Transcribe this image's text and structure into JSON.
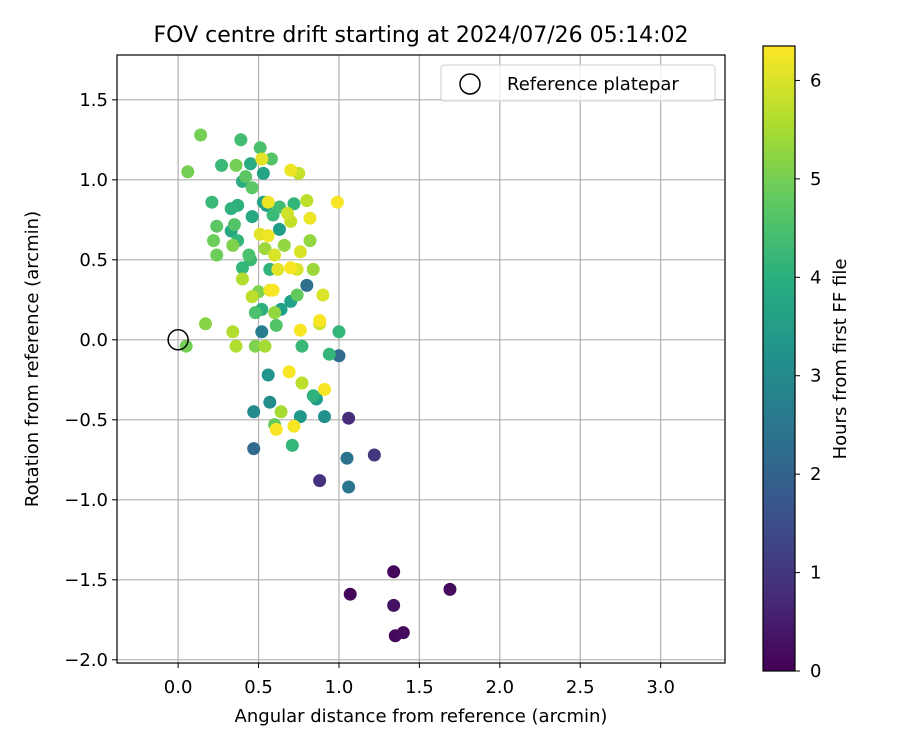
{
  "chart_data": {
    "type": "scatter",
    "title": "FOV centre drift starting at 2024/07/26 05:14:02",
    "xlabel": "Angular distance from reference (arcmin)",
    "ylabel": "Rotation from reference (arcmin)",
    "xlim": [
      -0.38,
      3.4
    ],
    "ylim": [
      -2.02,
      1.78
    ],
    "xticks": [
      0.0,
      0.5,
      1.0,
      1.5,
      2.0,
      2.5,
      3.0
    ],
    "xtick_labels": [
      "0.0",
      "0.5",
      "1.0",
      "1.5",
      "2.0",
      "2.5",
      "3.0"
    ],
    "yticks": [
      1.5,
      1.0,
      0.5,
      0.0,
      -0.5,
      -1.0,
      -1.5,
      -2.0
    ],
    "ytick_labels": [
      "1.5",
      "1.0",
      "0.5",
      "0.0",
      "−0.5",
      "−1.0",
      "−1.5",
      "−2.0"
    ],
    "grid": true,
    "legend": {
      "position": "top-right",
      "entries": [
        {
          "label": "Reference platepar",
          "marker": "open-circle"
        }
      ]
    },
    "reference_point": {
      "x": 0.0,
      "y": 0.0
    },
    "colorbar": {
      "label": "Hours from first FF file",
      "min": 0,
      "max": 6.35,
      "ticks": [
        0,
        1,
        2,
        3,
        4,
        5,
        6
      ],
      "tick_labels": [
        "0",
        "1",
        "2",
        "3",
        "4",
        "5",
        "6"
      ],
      "colormap": "viridis"
    },
    "points": [
      {
        "x": 1.07,
        "y": -1.59,
        "c": 0.1
      },
      {
        "x": 1.34,
        "y": -1.45,
        "c": 0.1
      },
      {
        "x": 1.34,
        "y": -1.66,
        "c": 0.3
      },
      {
        "x": 1.35,
        "y": -1.85,
        "c": 0.1
      },
      {
        "x": 1.4,
        "y": -1.83,
        "c": 0.2
      },
      {
        "x": 1.69,
        "y": -1.56,
        "c": 0.2
      },
      {
        "x": 1.06,
        "y": -0.49,
        "c": 0.8
      },
      {
        "x": 1.22,
        "y": -0.72,
        "c": 1.0
      },
      {
        "x": 0.88,
        "y": -0.88,
        "c": 0.9
      },
      {
        "x": 1.06,
        "y": -0.92,
        "c": 2.5
      },
      {
        "x": 1.05,
        "y": -0.74,
        "c": 2.4
      },
      {
        "x": 1.0,
        "y": -0.1,
        "c": 2.2
      },
      {
        "x": 0.47,
        "y": -0.68,
        "c": 2.2
      },
      {
        "x": 0.8,
        "y": 0.34,
        "c": 2.3
      },
      {
        "x": 0.52,
        "y": 0.05,
        "c": 2.7
      },
      {
        "x": 0.47,
        "y": -0.45,
        "c": 3.0
      },
      {
        "x": 0.57,
        "y": -0.39,
        "c": 3.1
      },
      {
        "x": 0.56,
        "y": -0.22,
        "c": 3.3
      },
      {
        "x": 0.91,
        "y": -0.48,
        "c": 3.2
      },
      {
        "x": 0.76,
        "y": -0.48,
        "c": 3.4
      },
      {
        "x": 0.86,
        "y": -0.37,
        "c": 3.5
      },
      {
        "x": 0.63,
        "y": 0.69,
        "c": 3.5
      },
      {
        "x": 0.64,
        "y": 0.19,
        "c": 3.6
      },
      {
        "x": 0.55,
        "y": 0.84,
        "c": 3.5
      },
      {
        "x": 0.7,
        "y": 0.24,
        "c": 3.6
      },
      {
        "x": 0.53,
        "y": 0.86,
        "c": 3.7
      },
      {
        "x": 0.53,
        "y": 1.04,
        "c": 3.7
      },
      {
        "x": 0.46,
        "y": 0.77,
        "c": 3.8
      },
      {
        "x": 0.33,
        "y": 0.68,
        "c": 3.8
      },
      {
        "x": 0.4,
        "y": 0.99,
        "c": 3.9
      },
      {
        "x": 0.45,
        "y": 1.1,
        "c": 3.9
      },
      {
        "x": 0.37,
        "y": 0.84,
        "c": 4.0
      },
      {
        "x": 0.52,
        "y": 0.19,
        "c": 4.0
      },
      {
        "x": 0.57,
        "y": 0.44,
        "c": 4.1
      },
      {
        "x": 0.33,
        "y": 0.82,
        "c": 4.1
      },
      {
        "x": 0.37,
        "y": 0.62,
        "c": 4.2
      },
      {
        "x": 0.72,
        "y": 0.85,
        "c": 4.2
      },
      {
        "x": 0.45,
        "y": 0.5,
        "c": 4.3
      },
      {
        "x": 0.59,
        "y": 0.78,
        "c": 4.3
      },
      {
        "x": 0.4,
        "y": 0.45,
        "c": 4.2
      },
      {
        "x": 0.27,
        "y": 1.09,
        "c": 4.3
      },
      {
        "x": 0.21,
        "y": 0.86,
        "c": 4.3
      },
      {
        "x": 0.84,
        "y": -0.35,
        "c": 4.1
      },
      {
        "x": 0.71,
        "y": -0.66,
        "c": 4.2
      },
      {
        "x": 1.0,
        "y": 0.05,
        "c": 4.2
      },
      {
        "x": 0.94,
        "y": -0.09,
        "c": 4.2
      },
      {
        "x": 0.77,
        "y": -0.04,
        "c": 4.3
      },
      {
        "x": 0.63,
        "y": 0.83,
        "c": 4.4
      },
      {
        "x": 0.39,
        "y": 1.25,
        "c": 4.4
      },
      {
        "x": 0.48,
        "y": 0.17,
        "c": 4.5
      },
      {
        "x": 0.51,
        "y": 1.2,
        "c": 4.5
      },
      {
        "x": 0.58,
        "y": 1.13,
        "c": 4.6
      },
      {
        "x": 0.35,
        "y": 0.72,
        "c": 4.6
      },
      {
        "x": 0.44,
        "y": 0.53,
        "c": 4.5
      },
      {
        "x": 0.61,
        "y": 0.09,
        "c": 4.6
      },
      {
        "x": 0.24,
        "y": 0.71,
        "c": 4.7
      },
      {
        "x": 0.42,
        "y": 1.02,
        "c": 4.7
      },
      {
        "x": 0.46,
        "y": 0.95,
        "c": 4.7
      },
      {
        "x": 0.6,
        "y": -0.53,
        "c": 4.8
      },
      {
        "x": 0.74,
        "y": 0.28,
        "c": 4.8
      },
      {
        "x": 0.22,
        "y": 0.62,
        "c": 4.9
      },
      {
        "x": 0.24,
        "y": 0.53,
        "c": 4.9
      },
      {
        "x": 0.14,
        "y": 1.28,
        "c": 5.0
      },
      {
        "x": 0.06,
        "y": 1.05,
        "c": 5.0
      },
      {
        "x": 0.05,
        "y": -0.04,
        "c": 5.0
      },
      {
        "x": 0.36,
        "y": 1.09,
        "c": 5.0
      },
      {
        "x": 0.34,
        "y": 0.59,
        "c": 5.1
      },
      {
        "x": 0.48,
        "y": -0.04,
        "c": 5.1
      },
      {
        "x": 0.17,
        "y": 0.1,
        "c": 5.2
      },
      {
        "x": 0.5,
        "y": 0.3,
        "c": 5.1
      },
      {
        "x": 0.6,
        "y": 0.17,
        "c": 5.3
      },
      {
        "x": 0.66,
        "y": 0.59,
        "c": 5.3
      },
      {
        "x": 0.82,
        "y": 0.62,
        "c": 5.3
      },
      {
        "x": 0.84,
        "y": 0.44,
        "c": 5.4
      },
      {
        "x": 0.54,
        "y": 0.57,
        "c": 5.4
      },
      {
        "x": 0.64,
        "y": -0.45,
        "c": 5.5
      },
      {
        "x": 0.54,
        "y": -0.04,
        "c": 5.5
      },
      {
        "x": 0.34,
        "y": 0.05,
        "c": 5.6
      },
      {
        "x": 0.36,
        "y": -0.04,
        "c": 5.6
      },
      {
        "x": 0.4,
        "y": 0.38,
        "c": 5.6
      },
      {
        "x": 0.46,
        "y": 0.27,
        "c": 5.7
      },
      {
        "x": 0.77,
        "y": -0.27,
        "c": 5.7
      },
      {
        "x": 0.8,
        "y": 0.87,
        "c": 5.7
      },
      {
        "x": 0.75,
        "y": 1.04,
        "c": 5.8
      },
      {
        "x": 0.7,
        "y": 0.74,
        "c": 5.8
      },
      {
        "x": 0.68,
        "y": 0.79,
        "c": 5.9
      },
      {
        "x": 0.88,
        "y": 0.1,
        "c": 5.9
      },
      {
        "x": 0.9,
        "y": 0.28,
        "c": 6.0
      },
      {
        "x": 0.6,
        "y": 0.53,
        "c": 6.0
      },
      {
        "x": 0.74,
        "y": 0.44,
        "c": 6.0
      },
      {
        "x": 0.76,
        "y": 0.55,
        "c": 6.0
      },
      {
        "x": 0.51,
        "y": 0.66,
        "c": 6.1
      },
      {
        "x": 0.62,
        "y": 0.44,
        "c": 6.1
      },
      {
        "x": 0.52,
        "y": 1.13,
        "c": 6.1
      },
      {
        "x": 0.7,
        "y": 1.06,
        "c": 6.2
      },
      {
        "x": 0.56,
        "y": 0.65,
        "c": 6.2
      },
      {
        "x": 0.57,
        "y": 0.31,
        "c": 6.2
      },
      {
        "x": 0.56,
        "y": 0.86,
        "c": 6.2
      },
      {
        "x": 0.82,
        "y": 0.76,
        "c": 6.2
      },
      {
        "x": 0.99,
        "y": 0.86,
        "c": 6.3
      },
      {
        "x": 0.7,
        "y": 0.45,
        "c": 6.3
      },
      {
        "x": 0.72,
        "y": -0.54,
        "c": 6.3
      },
      {
        "x": 0.61,
        "y": -0.56,
        "c": 6.3
      },
      {
        "x": 0.69,
        "y": -0.2,
        "c": 6.3
      },
      {
        "x": 0.91,
        "y": -0.31,
        "c": 6.3
      },
      {
        "x": 0.76,
        "y": 0.06,
        "c": 6.3
      },
      {
        "x": 0.88,
        "y": 0.12,
        "c": 6.3
      },
      {
        "x": 0.59,
        "y": 0.31,
        "c": 6.3
      }
    ]
  }
}
